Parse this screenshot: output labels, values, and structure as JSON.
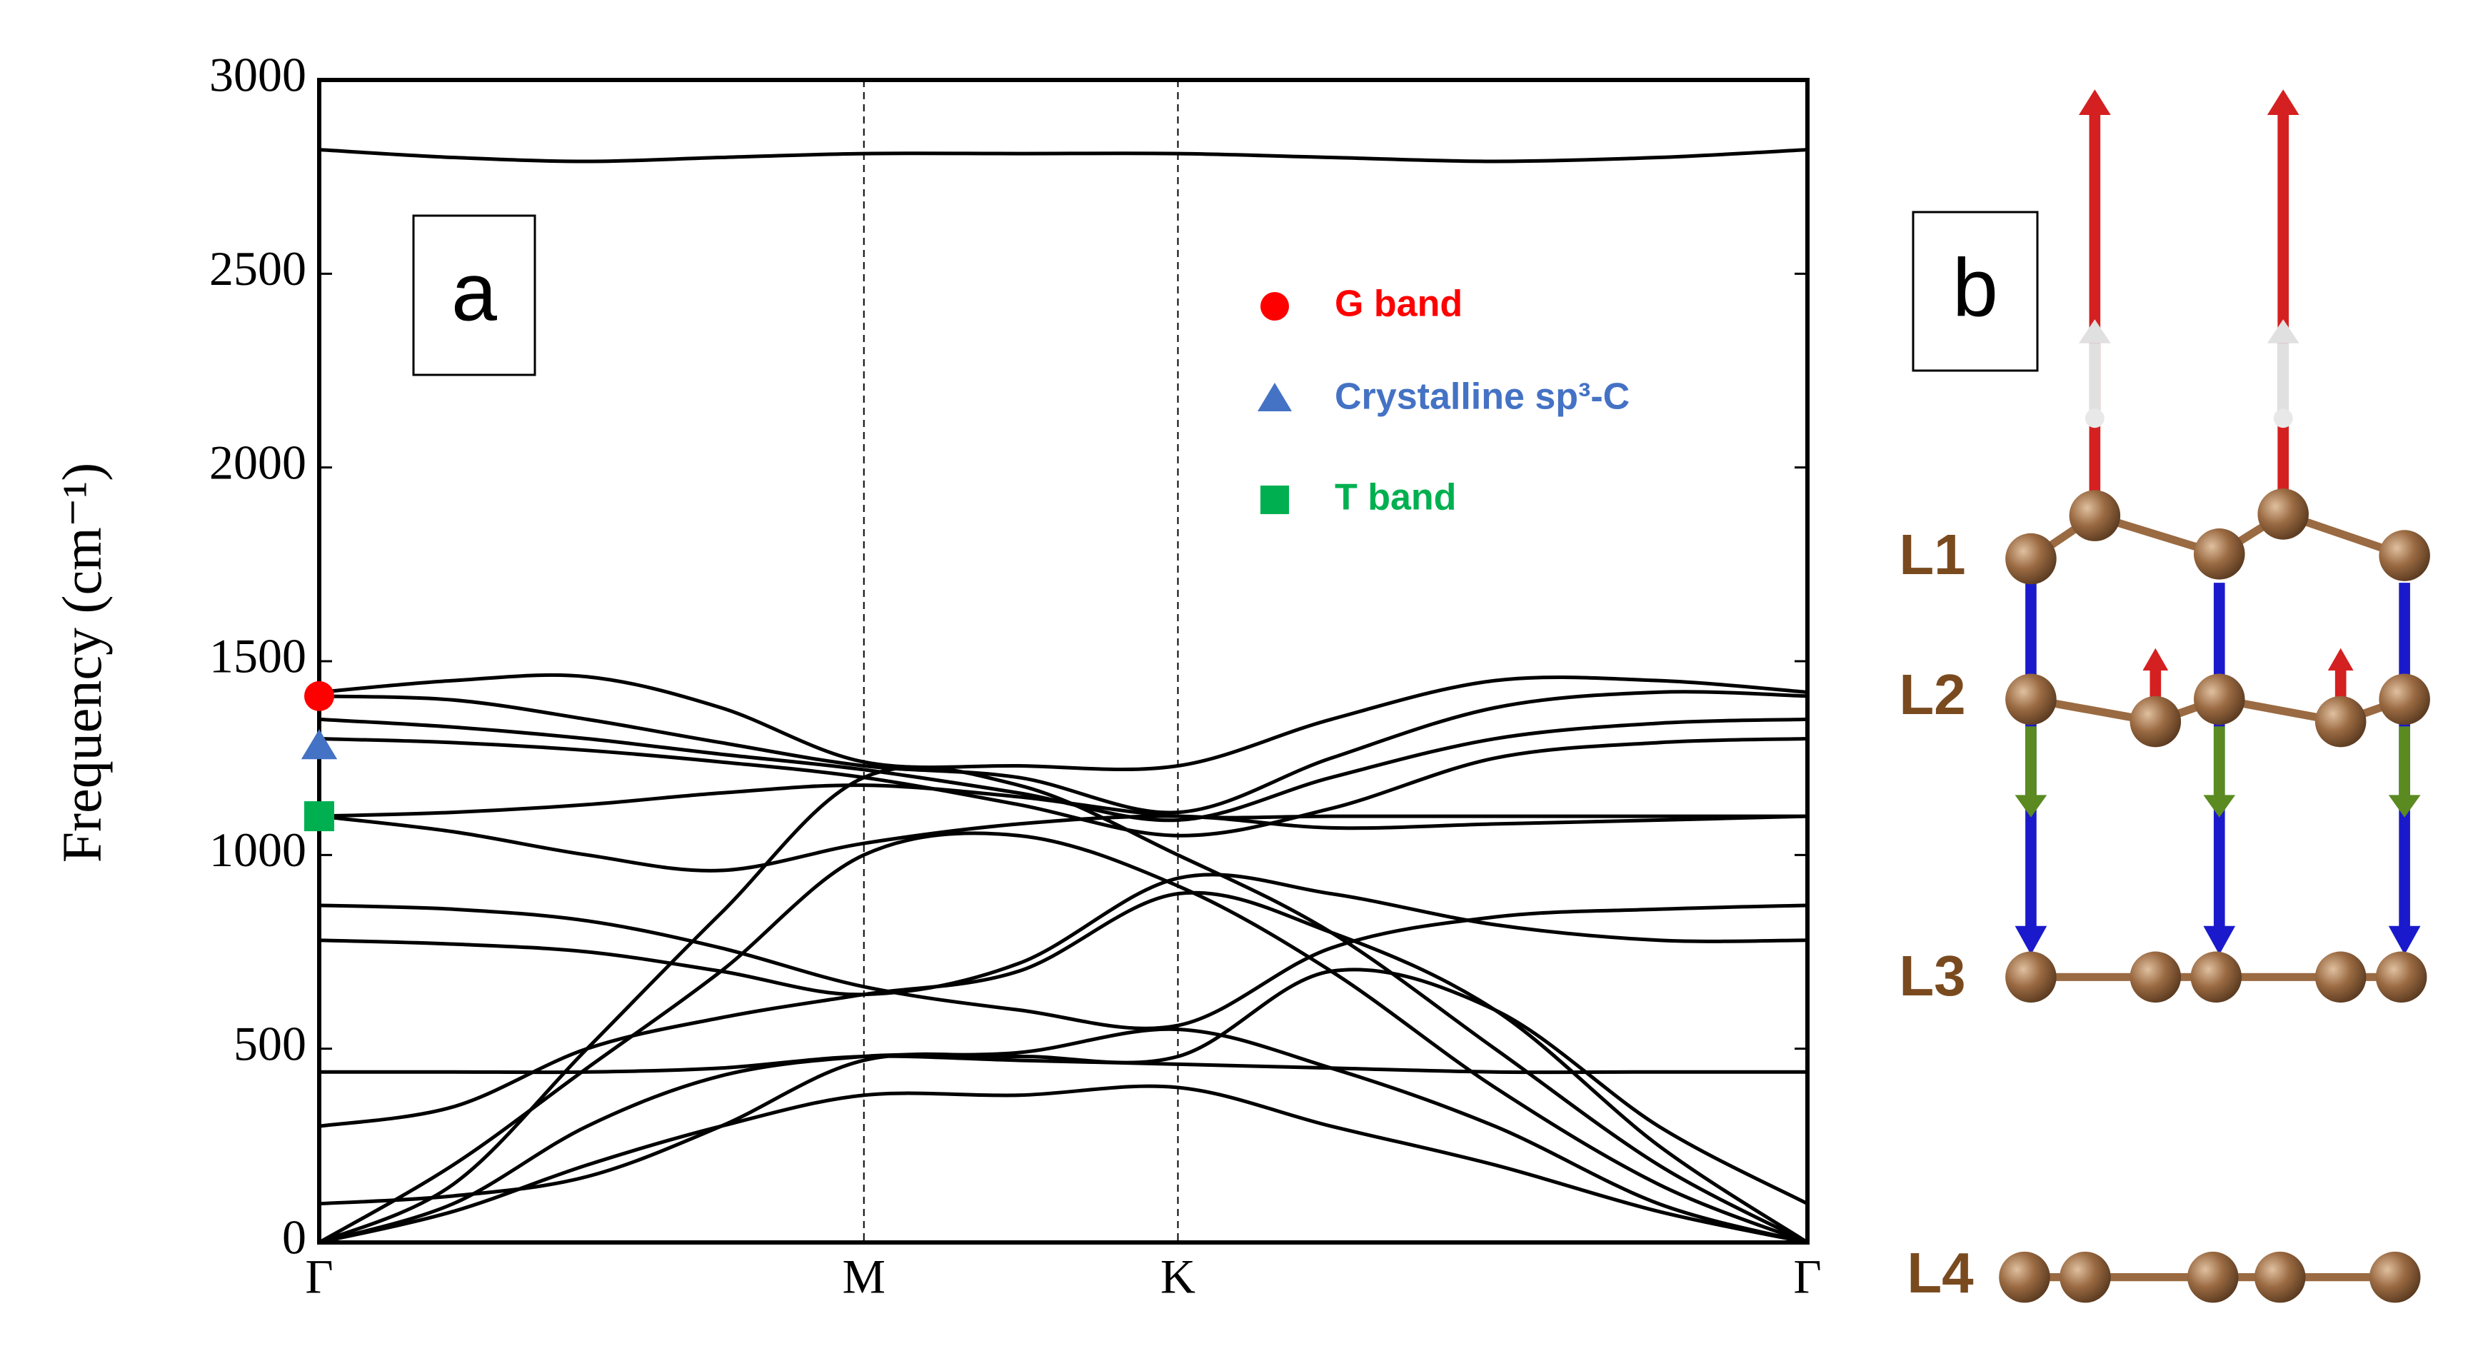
{
  "chart_data": {
    "type": "line",
    "panel_label": "a",
    "ylabel": "Frequency (cm⁻¹)",
    "xlim": [
      0,
      1
    ],
    "ylim": [
      0,
      3000
    ],
    "yticks": [
      0,
      500,
      1000,
      1500,
      2000,
      2500,
      3000
    ],
    "xticks": [
      {
        "value": 0,
        "label": "Γ"
      },
      {
        "value": 0.366,
        "label": "M"
      },
      {
        "value": 0.577,
        "label": "K"
      },
      {
        "value": 1,
        "label": "Γ"
      }
    ],
    "xgrid": true,
    "x": [
      0,
      0.09,
      0.18,
      0.27,
      0.366,
      0.47,
      0.577,
      0.68,
      0.79,
      0.9,
      1
    ],
    "series": [
      {
        "color": "#000000",
        "values": [
          2820,
          2800,
          2790,
          2800,
          2810,
          2810,
          2810,
          2800,
          2790,
          2800,
          2820
        ]
      },
      {
        "color": "#000000",
        "values": [
          1420,
          1450,
          1460,
          1380,
          1240,
          1230,
          1230,
          1350,
          1450,
          1450,
          1420
        ]
      },
      {
        "color": "#000000",
        "values": [
          1410,
          1400,
          1350,
          1290,
          1230,
          1200,
          1110,
          1250,
          1380,
          1420,
          1410
        ]
      },
      {
        "color": "#000000",
        "values": [
          1350,
          1330,
          1300,
          1260,
          1220,
          1160,
          1090,
          1200,
          1300,
          1340,
          1350
        ]
      },
      {
        "color": "#000000",
        "values": [
          1300,
          1290,
          1270,
          1240,
          1200,
          1130,
          1050,
          1120,
          1250,
          1290,
          1300
        ]
      },
      {
        "color": "#000000",
        "values": [
          1100,
          1110,
          1130,
          1160,
          1180,
          1150,
          1100,
          1100,
          1100,
          1100,
          1100
        ]
      },
      {
        "color": "#000000",
        "values": [
          1100,
          1060,
          1000,
          960,
          1030,
          1080,
          1100,
          1070,
          1080,
          1090,
          1100
        ]
      },
      {
        "color": "#000000",
        "values": [
          870,
          860,
          830,
          760,
          660,
          600,
          560,
          760,
          840,
          860,
          870
        ]
      },
      {
        "color": "#000000",
        "values": [
          780,
          770,
          750,
          700,
          640,
          720,
          940,
          900,
          820,
          780,
          780
        ]
      },
      {
        "color": "#000000",
        "values": [
          440,
          440,
          440,
          450,
          480,
          470,
          460,
          450,
          440,
          440,
          440
        ]
      },
      {
        "color": "#000000",
        "values": [
          0,
          150,
          500,
          850,
          1200,
          1180,
          1000,
          800,
          500,
          200,
          0
        ]
      },
      {
        "color": "#000000",
        "values": [
          0,
          200,
          450,
          700,
          1000,
          1050,
          920,
          700,
          400,
          150,
          0
        ]
      },
      {
        "color": "#000000",
        "values": [
          0,
          100,
          300,
          430,
          480,
          490,
          550,
          450,
          300,
          100,
          0
        ]
      },
      {
        "color": "#000000",
        "values": [
          0,
          80,
          200,
          300,
          380,
          380,
          400,
          300,
          200,
          80,
          0
        ]
      },
      {
        "color": "#000000",
        "values": [
          300,
          350,
          500,
          580,
          640,
          700,
          900,
          800,
          600,
          250,
          0
        ]
      },
      {
        "color": "#000000",
        "values": [
          100,
          120,
          170,
          300,
          470,
          480,
          480,
          700,
          600,
          300,
          100
        ]
      }
    ],
    "markers": [
      {
        "name": "G band",
        "color": "#ff0000",
        "shape": "circle",
        "x": 0,
        "y": 1410
      },
      {
        "name": "Crystalline sp³-C",
        "color": "#4472c4",
        "shape": "triangle",
        "x": 0,
        "y": 1280
      },
      {
        "name": "T band",
        "color": "#00b050",
        "shape": "square",
        "x": 0,
        "y": 1100
      }
    ]
  },
  "panel_b": {
    "panel_label": "b",
    "layers": [
      "L1",
      "L2",
      "L3",
      "L4"
    ]
  }
}
